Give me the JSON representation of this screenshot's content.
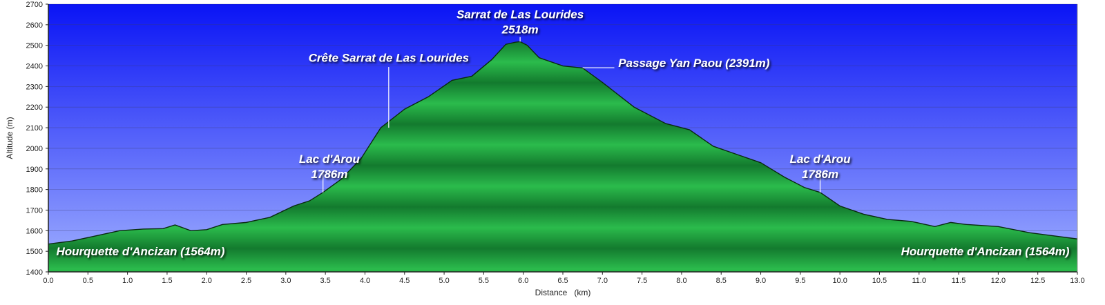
{
  "chart_data": {
    "type": "area",
    "title": "",
    "xlabel": "Distance   (km)",
    "ylabel": "Altitude (m)",
    "xlim": [
      0,
      13.0
    ],
    "ylim": [
      1400,
      2700
    ],
    "x_ticks": [
      0.0,
      0.5,
      1.0,
      1.5,
      2.0,
      2.5,
      3.0,
      3.5,
      4.0,
      4.5,
      5.0,
      5.5,
      6.0,
      6.5,
      7.0,
      7.5,
      8.0,
      8.5,
      9.0,
      9.5,
      10.0,
      10.5,
      11.0,
      11.5,
      12.0,
      12.5,
      13.0
    ],
    "y_ticks": [
      1400,
      1500,
      1600,
      1700,
      1800,
      1900,
      2000,
      2100,
      2200,
      2300,
      2400,
      2500,
      2600,
      2700
    ],
    "x_tick_labels": [
      "0.0",
      "0.5",
      "1.0",
      "1.5",
      "2.0",
      "2.5",
      "3.0",
      "3.5",
      "4.0",
      "4.5",
      "5.0",
      "5.5",
      "6.0",
      "6.5",
      "7.0",
      "7.5",
      "8.0",
      "8.5",
      "9.0",
      "9.5",
      "10.0",
      "10.5",
      "11.0",
      "11.5",
      "12.0",
      "12.5",
      "13.0"
    ],
    "y_tick_labels": [
      "1400",
      "1500",
      "1600",
      "1700",
      "1800",
      "1900",
      "2000",
      "2100",
      "2200",
      "2300",
      "2400",
      "2500",
      "2600",
      "2700"
    ],
    "grid": true,
    "colors": {
      "sky_top": "#0a14f5",
      "sky_bottom": "#a0b0ff",
      "fill_dark": "#137a2e",
      "fill_light": "#2bbb4c",
      "outline": "#0a2a10",
      "annotation_text": "#ffffff",
      "annotation_line": "#ffffff"
    },
    "series": [
      {
        "x": [
          0.0,
          0.3,
          0.6,
          0.9,
          1.2,
          1.45,
          1.6,
          1.8,
          2.0,
          2.2,
          2.5,
          2.8,
          3.1,
          3.3,
          3.47,
          3.7,
          3.95,
          4.2,
          4.5,
          4.8,
          5.1,
          5.35,
          5.6,
          5.78,
          5.9,
          5.96,
          6.05,
          6.2,
          6.5,
          6.75,
          7.0,
          7.4,
          7.8,
          8.1,
          8.4,
          8.7,
          9.0,
          9.3,
          9.55,
          9.75,
          10.0,
          10.3,
          10.6,
          10.9,
          11.2,
          11.4,
          11.6,
          12.0,
          12.4,
          13.0
        ],
        "y": [
          1535,
          1550,
          1575,
          1600,
          1608,
          1610,
          1628,
          1600,
          1605,
          1630,
          1640,
          1665,
          1720,
          1745,
          1786,
          1850,
          1950,
          2100,
          2190,
          2250,
          2330,
          2350,
          2430,
          2505,
          2515,
          2518,
          2500,
          2440,
          2400,
          2390,
          2320,
          2200,
          2120,
          2090,
          2010,
          1970,
          1930,
          1860,
          1810,
          1786,
          1720,
          1680,
          1655,
          1645,
          1620,
          1640,
          1630,
          1620,
          1590,
          1560
        ]
      }
    ],
    "annotations": [
      {
        "lines": [
          "Sarrat de Las Lourides",
          "2518m"
        ],
        "x": 5.96,
        "y": 2518,
        "leader_to": 2540,
        "label_y": 2632,
        "label_x": 5.96,
        "anchor": "middle"
      },
      {
        "lines": [
          "Crête Sarrat de Las Lourides"
        ],
        "x": 4.3,
        "y": 2100,
        "leader_to": 2395,
        "label_y": 2420,
        "label_x": 4.3,
        "anchor": "middle"
      },
      {
        "lines": [
          "Passage Yan Paou (2391m)"
        ],
        "x": 6.75,
        "y": 2391,
        "leader_to": 7.15,
        "label_y": 2395,
        "label_x": 7.2,
        "anchor": "start",
        "horizontal": true
      },
      {
        "lines": [
          "Lac d'Arou",
          "1786m"
        ],
        "x": 3.47,
        "y": 1786,
        "leader_to": 1880,
        "label_y": 1930,
        "label_x": 3.55,
        "anchor": "middle"
      },
      {
        "lines": [
          "Lac d'Arou",
          "1786m"
        ],
        "x": 9.75,
        "y": 1786,
        "leader_to": 1880,
        "label_y": 1930,
        "label_x": 9.75,
        "anchor": "middle"
      },
      {
        "lines": [
          "Hourquette d'Ancizan (1564m)"
        ],
        "x": 0.1,
        "y": 1564,
        "label_y": 1480,
        "label_x": 0.1,
        "anchor": "start"
      },
      {
        "lines": [
          "Hourquette d'Ancizan (1564m)"
        ],
        "x": 12.9,
        "y": 1564,
        "label_y": 1480,
        "label_x": 12.9,
        "anchor": "end"
      }
    ]
  }
}
